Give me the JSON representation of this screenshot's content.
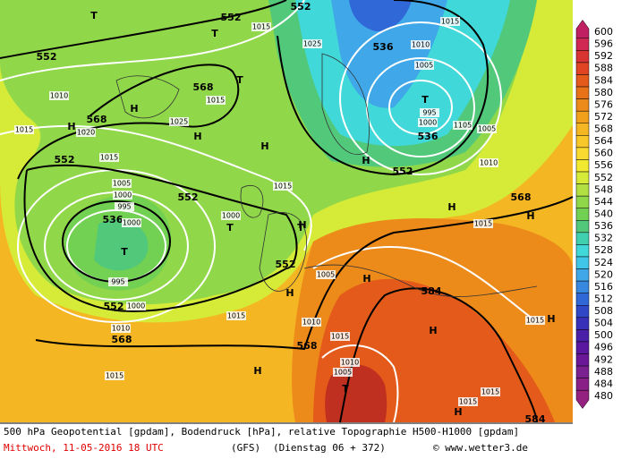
{
  "map_labels": [
    "552",
    "552",
    "552",
    "536",
    "568",
    "568",
    "552",
    "552",
    "536",
    "552",
    "552",
    "568",
    "568",
    "584",
    "568",
    "552",
    "536",
    "584",
    "T",
    "T",
    "T",
    "T",
    "T",
    "T",
    "T",
    "T",
    "H",
    "H",
    "H",
    "H",
    "H",
    "H",
    "H",
    "H",
    "H",
    "H",
    "H",
    "H",
    "H",
    "H",
    "1015",
    "1025",
    "1015",
    "1010",
    "1005",
    "995",
    "1000",
    "1105",
    "1005",
    "1010",
    "1015",
    "1010",
    "1020",
    "1025",
    "1015",
    "1015",
    "1005",
    "1000",
    "995",
    "1000",
    "995",
    "1000",
    "1010",
    "1015",
    "1000",
    "1005",
    "1015",
    "1010",
    "1015",
    "1010",
    "1015",
    "1015",
    "1005",
    "1015",
    "1015",
    "1015"
  ],
  "legend": {
    "labels": [
      600,
      596,
      592,
      588,
      584,
      580,
      576,
      572,
      568,
      564,
      560,
      556,
      552,
      548,
      544,
      540,
      536,
      532,
      528,
      524,
      520,
      516,
      512,
      508,
      504,
      500,
      496,
      492,
      488,
      484,
      480
    ],
    "colors": [
      "#c01f62",
      "#d02852",
      "#d83432",
      "#e04422",
      "#e45a1a",
      "#e87218",
      "#ec8a1a",
      "#f0a01a",
      "#f4b622",
      "#f8c82a",
      "#f8da30",
      "#f2ea30",
      "#d6ea38",
      "#b2e042",
      "#90d84a",
      "#72d052",
      "#52c87a",
      "#40d0b0",
      "#40d8d8",
      "#40c6e8",
      "#40a8e8",
      "#3888e0",
      "#3068d8",
      "#3048c8",
      "#3830b8",
      "#4a20a8",
      "#5a18a0",
      "#6a1898",
      "#7a2090",
      "#882088",
      "#942080"
    ]
  },
  "footer": {
    "caption": "500 hPa Geopotential [gpdam], Bodendruck [hPa], relative Topographie H500-H1000 [gpdam]",
    "date": "Mittwoch, 11-05-2016  18 UTC",
    "model": "(GFS)",
    "run": "(Dienstag 06 + 372)",
    "credit": "© www.wetter3.de"
  }
}
